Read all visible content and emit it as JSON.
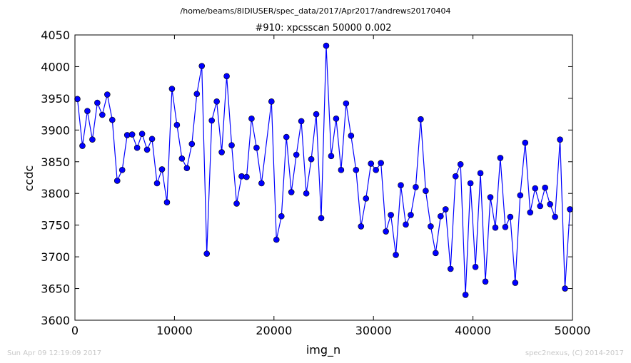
{
  "chart_data": {
    "type": "line",
    "subtitle": "/home/beams/8IDIUSER/spec_data/2017/Apr2017/andrews20170404",
    "title": "#910: xpcsscan 50000 0.002",
    "xlabel": "img_n",
    "ylabel": "ccdc",
    "xlim": [
      0,
      50000
    ],
    "ylim": [
      3600,
      4050
    ],
    "xticks": [
      0,
      10000,
      20000,
      30000,
      40000,
      50000
    ],
    "yticks": [
      3600,
      3650,
      3700,
      3750,
      3800,
      3850,
      3900,
      3950,
      4000,
      4050
    ],
    "xtick_labels": [
      "0",
      "10000",
      "20000",
      "30000",
      "40000",
      "50000"
    ],
    "ytick_labels": [
      "3600",
      "3650",
      "3700",
      "3750",
      "3800",
      "3850",
      "3900",
      "3950",
      "4000",
      "4050"
    ],
    "grid": false,
    "marker": "circle",
    "line_color": "#0000ff",
    "marker_color": "#0000ff",
    "x": [
      250,
      750,
      1250,
      1750,
      2250,
      2750,
      3250,
      3750,
      4250,
      4750,
      5250,
      5750,
      6250,
      6750,
      7250,
      7750,
      8250,
      8750,
      9250,
      9750,
      10250,
      10750,
      11250,
      11750,
      12250,
      12750,
      13250,
      13750,
      14250,
      14750,
      15250,
      15750,
      16250,
      16750,
      17250,
      17750,
      18250,
      18750,
      19750,
      20250,
      20750,
      21250,
      21750,
      22250,
      22750,
      23250,
      23750,
      24250,
      24750,
      25250,
      25750,
      26250,
      26750,
      27250,
      27750,
      28250,
      28750,
      29250,
      29750,
      30250,
      30750,
      31250,
      31750,
      32250,
      32750,
      33250,
      33750,
      34250,
      34750,
      35250,
      35750,
      36250,
      36750,
      37250,
      37750,
      38250,
      38750,
      39250,
      39750,
      40250,
      40750,
      41250,
      41750,
      42250,
      42750,
      43250,
      43750,
      44250,
      44750,
      45250,
      45750,
      46250,
      46750,
      47250,
      47750,
      48250,
      48750,
      49250,
      49750
    ],
    "y": [
      3949,
      3875,
      3930,
      3885,
      3943,
      3924,
      3956,
      3916,
      3820,
      3837,
      3892,
      3893,
      3872,
      3894,
      3869,
      3886,
      3816,
      3838,
      3786,
      3965,
      3908,
      3855,
      3840,
      3878,
      3957,
      4001,
      3705,
      3915,
      3945,
      3865,
      3985,
      3876,
      3784,
      3827,
      3826,
      3918,
      3872,
      3816,
      3945,
      3727,
      3764,
      3889,
      3802,
      3861,
      3914,
      3800,
      3854,
      3925,
      3761,
      4033,
      3859,
      3918,
      3837,
      3942,
      3891,
      3837,
      3748,
      3792,
      3847,
      3837,
      3848,
      3740,
      3766,
      3703,
      3813,
      3751,
      3766,
      3810,
      3917,
      3804,
      3748,
      3706,
      3764,
      3775,
      3681,
      3827,
      3846,
      3640,
      3816,
      3684,
      3832,
      3661,
      3794,
      3746,
      3856,
      3747,
      3763,
      3659,
      3797,
      3880,
      3770,
      3808,
      3780,
      3809,
      3783,
      3763,
      3885,
      3650,
      3775
    ]
  },
  "footer": {
    "timestamp": "Sun Apr 09 12:19:09 2017",
    "credit": "spec2nexus, (C) 2014-2017"
  }
}
